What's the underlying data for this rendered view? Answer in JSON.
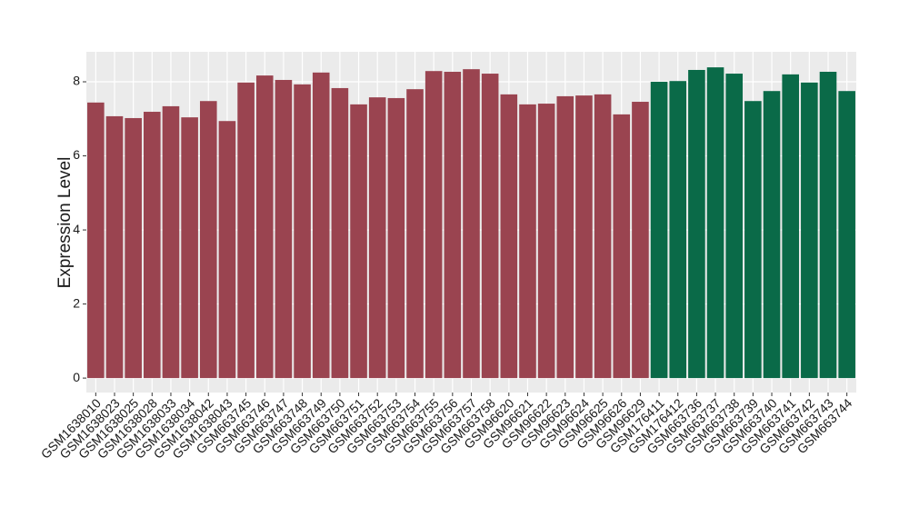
{
  "chart_data": {
    "type": "bar",
    "y_label": "Expression Level",
    "categories": [
      "GSM1638010",
      "GSM1638023",
      "GSM1638025",
      "GSM1638028",
      "GSM1638033",
      "GSM1638034",
      "GSM1638042",
      "GSM1638043",
      "GSM663745",
      "GSM663746",
      "GSM663747",
      "GSM663748",
      "GSM663749",
      "GSM663750",
      "GSM663751",
      "GSM663752",
      "GSM663753",
      "GSM663754",
      "GSM663755",
      "GSM663756",
      "GSM663757",
      "GSM663758",
      "GSM96620",
      "GSM96621",
      "GSM96622",
      "GSM96623",
      "GSM96624",
      "GSM96625",
      "GSM96626",
      "GSM96629",
      "GSM176411",
      "GSM176412",
      "GSM663736",
      "GSM663737",
      "GSM663738",
      "GSM663739",
      "GSM663740",
      "GSM663741",
      "GSM663742",
      "GSM663743",
      "GSM663744"
    ],
    "series": [
      {
        "color": "#9a4450",
        "values": [
          7.44,
          7.07,
          7.02,
          7.19,
          7.34,
          7.04,
          7.48,
          6.94,
          7.98,
          8.17,
          8.05,
          7.93,
          8.25,
          7.83,
          7.39,
          7.58,
          7.56,
          7.8,
          8.29,
          8.27,
          8.34,
          8.22,
          7.66,
          7.39,
          7.41,
          7.61,
          7.63,
          7.66,
          7.12,
          7.46,
          null,
          null,
          null,
          null,
          null,
          null,
          null,
          null,
          null,
          null,
          null
        ]
      },
      {
        "color": "#0a6a48",
        "values": [
          null,
          null,
          null,
          null,
          null,
          null,
          null,
          null,
          null,
          null,
          null,
          null,
          null,
          null,
          null,
          null,
          null,
          null,
          null,
          null,
          null,
          null,
          null,
          null,
          null,
          null,
          null,
          null,
          null,
          null,
          8.0,
          8.02,
          8.32,
          8.39,
          8.22,
          7.48,
          7.75,
          8.2,
          7.98,
          8.27,
          7.75
        ]
      }
    ],
    "ylim": [
      -0.39,
      8.81
    ],
    "yticks": [
      0,
      2,
      4,
      6,
      8
    ],
    "grid": true,
    "panel_color": "#ebebeb"
  }
}
